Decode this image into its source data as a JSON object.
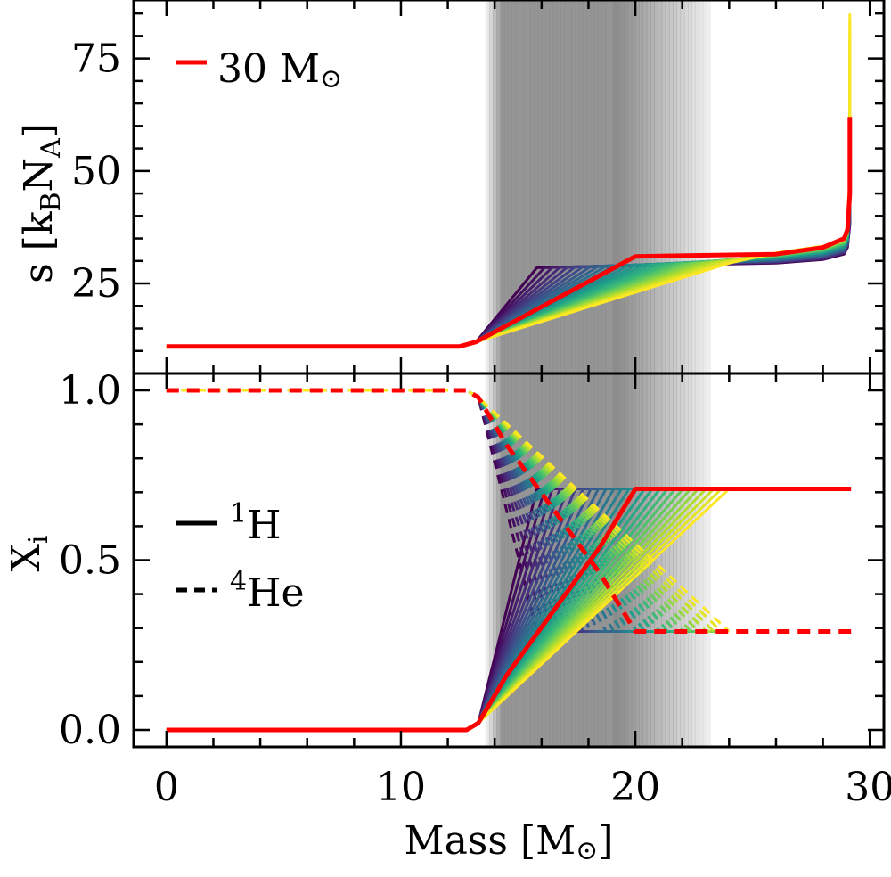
{
  "chart_data": [
    {
      "type": "line",
      "panel": "top",
      "ylabel": "s [k_B N_A]",
      "ylabel_parts": {
        "base": "s [k",
        "sub1": "B",
        "mid": "N",
        "sub2": "A",
        "end": "]"
      },
      "xlim": [
        -1.4,
        30.6
      ],
      "ylim": [
        5,
        88
      ],
      "yticks": [
        25,
        50,
        75
      ],
      "ytick_labels": [
        "25",
        "50",
        "75"
      ],
      "legend": {
        "label": "30 M_⊙",
        "text": "30 M",
        "symbol": "⊙",
        "color": "#ff0000",
        "position": "upper-left"
      },
      "series": [
        {
          "name": "30 M⊙ (highlighted)",
          "color": "#ff0000",
          "x": [
            0,
            12.5,
            13.2,
            20.0,
            26.0,
            28.0,
            28.9,
            29.05,
            29.15,
            29.15
          ],
          "y": [
            11,
            11,
            12,
            31,
            31.5,
            33,
            35,
            37,
            45,
            62
          ]
        }
      ],
      "family": {
        "count": 26,
        "colormap": "viridis",
        "shared_x": [
          0,
          12.5,
          13.2
        ],
        "shared_y": [
          11,
          11,
          12
        ],
        "ramp_end_x": [
          15.8,
          24.0
        ],
        "ramp_end_y": [
          28.5,
          29.5
        ],
        "surface": {
          "x": [
            26.0,
            28.0,
            28.9,
            29.05,
            29.15,
            29.15
          ],
          "y_first": [
            29.5,
            30.3,
            31.5,
            33,
            38,
            45
          ],
          "y_last": [
            31.8,
            33.3,
            35,
            37,
            50,
            85
          ]
        }
      }
    },
    {
      "type": "line",
      "panel": "bottom",
      "xlabel": "Mass [M_⊙]",
      "xlabel_parts": {
        "text": "Mass [M",
        "symbol": "⊙",
        "end": "]"
      },
      "ylabel": "X_i",
      "ylabel_parts": {
        "base": "X",
        "sub": "i"
      },
      "xlim": [
        -1.4,
        30.6
      ],
      "ylim": [
        -0.05,
        1.05
      ],
      "xticks": [
        0,
        10,
        20,
        30
      ],
      "xtick_labels": [
        "0",
        "10",
        "20",
        "30"
      ],
      "yticks": [
        0.0,
        0.5,
        1.0
      ],
      "ytick_labels": [
        "0.0",
        "0.5",
        "1.0"
      ],
      "legend": [
        {
          "label": "1H",
          "sup": "1",
          "text": "H",
          "style": "solid"
        },
        {
          "label": "4He",
          "sup": "4",
          "text": "He",
          "style": "dashed"
        }
      ],
      "series": [
        {
          "name": "1H (30 M⊙)",
          "style": "solid",
          "color": "#ff0000",
          "x": [
            0,
            12.8,
            13.3,
            14.5,
            16.5,
            18.5,
            20.0,
            29.2
          ],
          "y": [
            0,
            0,
            0.02,
            0.16,
            0.35,
            0.54,
            0.71,
            0.71
          ]
        },
        {
          "name": "4He (30 M⊙)",
          "style": "dashed",
          "color": "#ff0000",
          "x": [
            0,
            12.8,
            13.3,
            14.5,
            16.5,
            18.5,
            20.0,
            29.2
          ],
          "y": [
            1,
            1,
            0.98,
            0.84,
            0.65,
            0.46,
            0.29,
            0.29
          ]
        }
      ],
      "family": {
        "count": 26,
        "colormap": "viridis",
        "shared_x": [
          0,
          12.8,
          13.3
        ],
        "h_shared_y": [
          0,
          0,
          0.02
        ],
        "he_shared_y": [
          1,
          1,
          0.98
        ],
        "ramp_end_x": [
          15.8,
          24.0
        ],
        "h_plateau": 0.71,
        "he_plateau": 0.29,
        "tail_end_x": 23.8
      }
    }
  ],
  "shading": {
    "x_start": 13.6,
    "x_solid_end": 19.0,
    "x_end": 23.2,
    "color": "#8c8c8c"
  }
}
